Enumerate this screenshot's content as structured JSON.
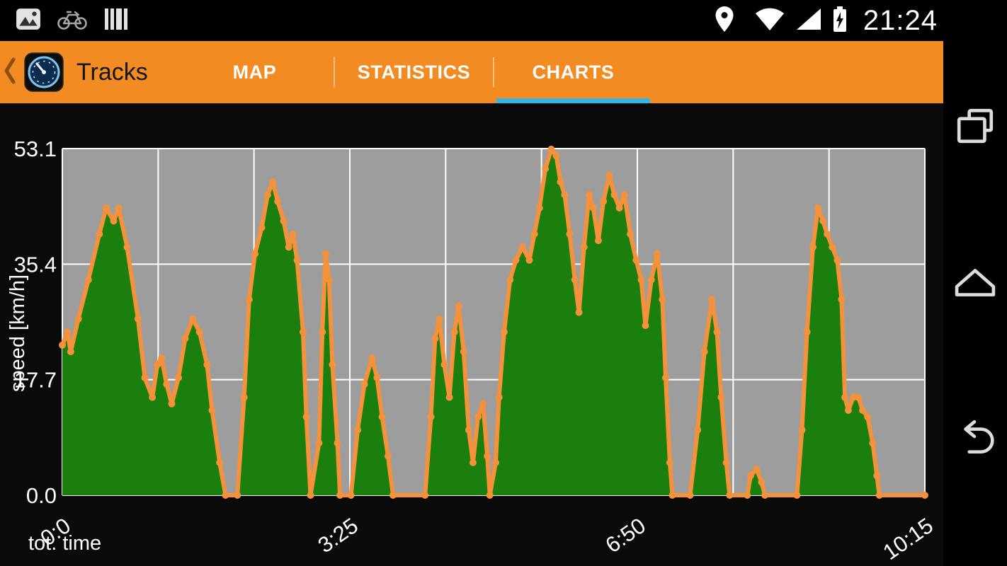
{
  "status_bar": {
    "time": "21:24",
    "icons_left": [
      "photo-icon",
      "bicycle-icon",
      "barcode-icon"
    ],
    "icons_right": [
      "location-icon",
      "wifi-icon",
      "signal-icon",
      "battery-charging-icon"
    ]
  },
  "app_bar": {
    "title": "Tracks",
    "bar_color": "#F28B21",
    "accent_color": "#33B5E5",
    "tabs": [
      {
        "label": "MAP",
        "active": false
      },
      {
        "label": "STATISTICS",
        "active": false
      },
      {
        "label": "CHARTS",
        "active": true
      }
    ]
  },
  "nav_bar": {
    "icons": [
      "recents-icon",
      "home-icon",
      "back-icon"
    ]
  },
  "chart_data": {
    "type": "area",
    "title": "",
    "xlabel": "tot. time",
    "ylabel": "speed [km/h]",
    "xlim": [
      0,
      10.25
    ],
    "ylim": [
      0,
      53.1
    ],
    "x_gridline_count": 9,
    "x_ticks": [
      {
        "t": 0,
        "label": "0:0"
      },
      {
        "t": 3.4167,
        "label": "3:25"
      },
      {
        "t": 6.8333,
        "label": "6:50"
      },
      {
        "t": 10.25,
        "label": "10:15"
      }
    ],
    "y_ticks": [
      {
        "v": 0,
        "label": "0.0"
      },
      {
        "v": 17.7,
        "label": "17.7"
      },
      {
        "v": 35.4,
        "label": "35.4"
      },
      {
        "v": 53.1,
        "label": "53.1"
      }
    ],
    "plot_bg": "#9D9D9D",
    "grid_color": "#FFFFFF",
    "series": [
      {
        "name": "speed",
        "fill_color": "#1B7F0E",
        "line_color": "#F5913B",
        "points": [
          [
            0.0,
            23
          ],
          [
            0.06,
            25
          ],
          [
            0.1,
            22
          ],
          [
            0.19,
            27
          ],
          [
            0.31,
            33
          ],
          [
            0.44,
            40
          ],
          [
            0.52,
            44
          ],
          [
            0.61,
            42
          ],
          [
            0.67,
            44
          ],
          [
            0.77,
            38
          ],
          [
            0.9,
            27
          ],
          [
            0.98,
            18
          ],
          [
            1.07,
            15
          ],
          [
            1.13,
            20
          ],
          [
            1.18,
            21
          ],
          [
            1.24,
            17
          ],
          [
            1.3,
            14
          ],
          [
            1.38,
            18
          ],
          [
            1.46,
            24
          ],
          [
            1.55,
            27
          ],
          [
            1.63,
            25
          ],
          [
            1.72,
            20
          ],
          [
            1.78,
            13
          ],
          [
            1.87,
            5
          ],
          [
            1.94,
            0
          ],
          [
            2.08,
            0
          ],
          [
            2.16,
            15
          ],
          [
            2.22,
            30
          ],
          [
            2.29,
            37
          ],
          [
            2.37,
            41
          ],
          [
            2.44,
            46
          ],
          [
            2.5,
            48
          ],
          [
            2.56,
            45
          ],
          [
            2.63,
            42
          ],
          [
            2.69,
            38
          ],
          [
            2.74,
            40
          ],
          [
            2.79,
            36
          ],
          [
            2.86,
            25
          ],
          [
            2.9,
            12
          ],
          [
            2.95,
            0
          ],
          [
            3.05,
            8
          ],
          [
            3.09,
            25
          ],
          [
            3.13,
            37
          ],
          [
            3.17,
            33
          ],
          [
            3.21,
            20
          ],
          [
            3.27,
            8
          ],
          [
            3.3,
            0
          ],
          [
            3.43,
            0
          ],
          [
            3.51,
            10
          ],
          [
            3.59,
            17
          ],
          [
            3.68,
            21
          ],
          [
            3.74,
            18
          ],
          [
            3.8,
            12
          ],
          [
            3.87,
            6
          ],
          [
            3.93,
            0
          ],
          [
            4.31,
            0
          ],
          [
            4.38,
            12
          ],
          [
            4.43,
            24
          ],
          [
            4.48,
            27
          ],
          [
            4.54,
            20
          ],
          [
            4.6,
            15
          ],
          [
            4.66,
            25
          ],
          [
            4.71,
            29
          ],
          [
            4.77,
            22
          ],
          [
            4.83,
            10
          ],
          [
            4.88,
            5
          ],
          [
            4.94,
            12
          ],
          [
            5.0,
            14
          ],
          [
            5.05,
            6
          ],
          [
            5.08,
            0
          ],
          [
            5.15,
            5
          ],
          [
            5.19,
            15
          ],
          [
            5.25,
            25
          ],
          [
            5.32,
            33
          ],
          [
            5.39,
            36
          ],
          [
            5.47,
            38
          ],
          [
            5.55,
            36
          ],
          [
            5.61,
            40
          ],
          [
            5.67,
            44
          ],
          [
            5.74,
            50
          ],
          [
            5.81,
            53
          ],
          [
            5.87,
            52
          ],
          [
            5.92,
            48
          ],
          [
            5.97,
            46
          ],
          [
            6.03,
            40
          ],
          [
            6.09,
            33
          ],
          [
            6.14,
            28
          ],
          [
            6.2,
            38
          ],
          [
            6.26,
            46
          ],
          [
            6.31,
            44
          ],
          [
            6.37,
            39
          ],
          [
            6.43,
            45
          ],
          [
            6.5,
            49
          ],
          [
            6.56,
            46
          ],
          [
            6.62,
            44
          ],
          [
            6.68,
            46
          ],
          [
            6.75,
            40
          ],
          [
            6.82,
            36
          ],
          [
            6.88,
            33
          ],
          [
            6.93,
            26
          ],
          [
            7.0,
            33
          ],
          [
            7.07,
            37
          ],
          [
            7.13,
            30
          ],
          [
            7.17,
            18
          ],
          [
            7.22,
            5
          ],
          [
            7.25,
            0
          ],
          [
            7.46,
            0
          ],
          [
            7.55,
            10
          ],
          [
            7.63,
            22
          ],
          [
            7.72,
            30
          ],
          [
            7.78,
            25
          ],
          [
            7.83,
            15
          ],
          [
            7.89,
            5
          ],
          [
            7.93,
            0
          ],
          [
            8.14,
            0
          ],
          [
            8.18,
            3
          ],
          [
            8.25,
            4
          ],
          [
            8.31,
            2
          ],
          [
            8.35,
            0
          ],
          [
            8.73,
            0
          ],
          [
            8.79,
            10
          ],
          [
            8.85,
            25
          ],
          [
            8.92,
            38
          ],
          [
            8.98,
            44
          ],
          [
            9.04,
            42
          ],
          [
            9.09,
            40
          ],
          [
            9.15,
            38
          ],
          [
            9.21,
            36
          ],
          [
            9.26,
            30
          ],
          [
            9.3,
            15
          ],
          [
            9.34,
            13
          ],
          [
            9.4,
            15
          ],
          [
            9.46,
            15
          ],
          [
            9.51,
            13
          ],
          [
            9.57,
            12
          ],
          [
            9.63,
            8
          ],
          [
            9.68,
            3
          ],
          [
            9.71,
            0
          ],
          [
            10.25,
            0
          ]
        ]
      }
    ]
  }
}
